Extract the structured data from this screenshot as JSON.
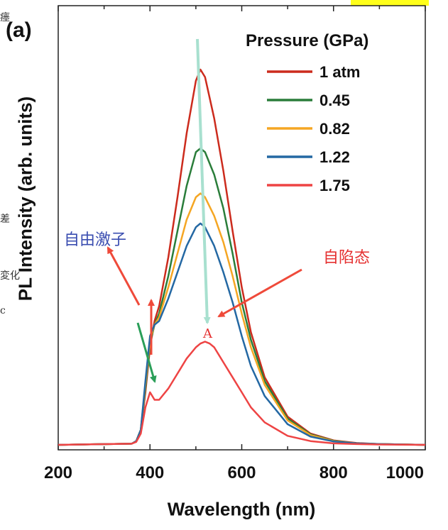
{
  "panel_label": "(a)",
  "cropped_text": [
    "瘗",
    "差",
    "変化",
    "c"
  ],
  "annotations": {
    "free_exciton": "自由激子",
    "self_trapped": "自陷态",
    "point_a": "A"
  },
  "colors": {
    "1 atm": "#cc2b1d",
    "0.45": "#2a7d3a",
    "0.82": "#f5a623",
    "1.22": "#2468a3",
    "1.75": "#ee4444",
    "arrow_red": "#ef4a3a",
    "arrow_green": "#2a9e58",
    "arrow_light": "#a8e0cf",
    "free_exciton_text": "#3a4db0",
    "self_trapped_text": "#e53030",
    "highlight": "#ffff1a"
  },
  "chart_data": {
    "type": "line",
    "title": "",
    "xlabel": "Wavelength (nm)",
    "ylabel": "PL Intensity (arb. units)",
    "xlim": [
      200,
      1000
    ],
    "ylim": [
      0,
      1.05
    ],
    "xticks": [
      200,
      400,
      600,
      800,
      1000
    ],
    "yticks_shown": false,
    "grid": false,
    "legend_title": "Pressure (GPa)",
    "legend_position": "top-right",
    "series": [
      {
        "name": "1 atm",
        "x": [
          360,
          370,
          380,
          390,
          400,
          410,
          420,
          440,
          460,
          480,
          500,
          510,
          520,
          540,
          560,
          580,
          600,
          620,
          650,
          700,
          750,
          800,
          850,
          900,
          1000
        ],
        "y": [
          0.003,
          0.01,
          0.04,
          0.14,
          0.26,
          0.33,
          0.37,
          0.5,
          0.66,
          0.83,
          0.97,
          1.0,
          0.98,
          0.87,
          0.73,
          0.57,
          0.42,
          0.3,
          0.18,
          0.075,
          0.03,
          0.012,
          0.005,
          0.002,
          0.0
        ]
      },
      {
        "name": "0.45",
        "x": [
          360,
          370,
          380,
          390,
          400,
          410,
          420,
          440,
          460,
          480,
          500,
          510,
          520,
          540,
          560,
          580,
          600,
          620,
          650,
          700,
          750,
          800,
          850,
          900,
          1000
        ],
        "y": [
          0.003,
          0.01,
          0.04,
          0.15,
          0.27,
          0.32,
          0.35,
          0.45,
          0.57,
          0.69,
          0.78,
          0.79,
          0.78,
          0.72,
          0.63,
          0.51,
          0.38,
          0.28,
          0.17,
          0.07,
          0.028,
          0.011,
          0.004,
          0.002,
          0.0
        ]
      },
      {
        "name": "0.82",
        "x": [
          360,
          370,
          380,
          390,
          400,
          410,
          420,
          440,
          460,
          480,
          500,
          510,
          520,
          540,
          560,
          580,
          600,
          620,
          650,
          700,
          750,
          800,
          850,
          900,
          1000
        ],
        "y": [
          0.003,
          0.01,
          0.04,
          0.16,
          0.28,
          0.32,
          0.34,
          0.42,
          0.51,
          0.6,
          0.66,
          0.67,
          0.66,
          0.61,
          0.54,
          0.45,
          0.35,
          0.26,
          0.16,
          0.065,
          0.026,
          0.01,
          0.004,
          0.002,
          0.0
        ]
      },
      {
        "name": "1.22",
        "x": [
          360,
          370,
          380,
          390,
          400,
          410,
          420,
          440,
          460,
          480,
          500,
          510,
          520,
          540,
          560,
          580,
          600,
          620,
          650,
          700,
          750,
          800,
          850,
          900,
          1000
        ],
        "y": [
          0.003,
          0.01,
          0.04,
          0.17,
          0.29,
          0.32,
          0.33,
          0.39,
          0.46,
          0.53,
          0.58,
          0.59,
          0.58,
          0.53,
          0.46,
          0.38,
          0.29,
          0.21,
          0.13,
          0.055,
          0.022,
          0.009,
          0.004,
          0.002,
          0.0
        ]
      },
      {
        "name": "1.75",
        "x": [
          360,
          370,
          380,
          390,
          400,
          410,
          420,
          440,
          460,
          480,
          500,
          510,
          520,
          530,
          540,
          560,
          580,
          600,
          620,
          650,
          700,
          750,
          800,
          850,
          900,
          1000
        ],
        "y": [
          0.003,
          0.008,
          0.03,
          0.1,
          0.14,
          0.12,
          0.12,
          0.15,
          0.19,
          0.23,
          0.26,
          0.27,
          0.275,
          0.27,
          0.26,
          0.22,
          0.18,
          0.14,
          0.1,
          0.06,
          0.024,
          0.01,
          0.004,
          0.002,
          0.001,
          0.0
        ]
      }
    ]
  }
}
